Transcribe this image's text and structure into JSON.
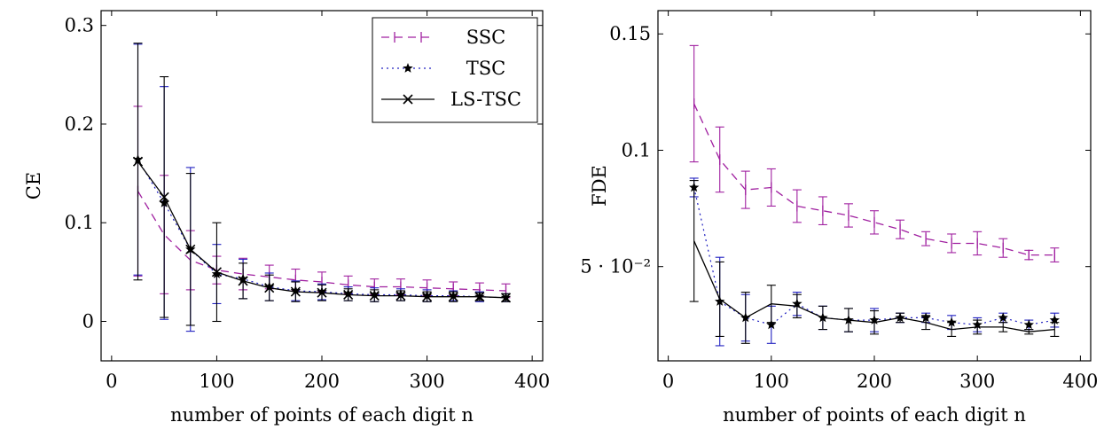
{
  "chart_data": [
    {
      "type": "line",
      "xlabel": "number of points of each digit n",
      "ylabel": "CE",
      "xlim": [
        -10,
        410
      ],
      "ylim": [
        -0.04,
        0.315
      ],
      "xticks": [
        0,
        100,
        200,
        300,
        400
      ],
      "xtick_labels": [
        "0",
        "100",
        "200",
        "300",
        "400"
      ],
      "yticks": [
        0,
        0.1,
        0.2,
        0.3
      ],
      "ytick_labels": [
        "0",
        "0.1",
        "0.2",
        "0.3"
      ],
      "legend_position": "top-right",
      "x": [
        25,
        50,
        75,
        100,
        125,
        150,
        175,
        200,
        225,
        250,
        275,
        300,
        325,
        350,
        375
      ],
      "series": [
        {
          "name": "SSC",
          "color": "#a020a0",
          "style": "dashed",
          "marker": "vbar",
          "values": [
            0.132,
            0.088,
            0.062,
            0.052,
            0.048,
            0.045,
            0.042,
            0.04,
            0.037,
            0.035,
            0.035,
            0.034,
            0.033,
            0.032,
            0.031
          ],
          "err": [
            0.086,
            0.06,
            0.03,
            0.014,
            0.016,
            0.012,
            0.011,
            0.01,
            0.009,
            0.008,
            0.008,
            0.008,
            0.007,
            0.007,
            0.007
          ]
        },
        {
          "name": "TSC",
          "color": "#2020c0",
          "style": "dotted",
          "marker": "star",
          "values": [
            0.164,
            0.12,
            0.073,
            0.048,
            0.043,
            0.035,
            0.031,
            0.03,
            0.028,
            0.027,
            0.027,
            0.026,
            0.026,
            0.025,
            0.024
          ],
          "err": [
            0.117,
            0.118,
            0.083,
            0.03,
            0.02,
            0.014,
            0.01,
            0.008,
            0.007,
            0.007,
            0.006,
            0.006,
            0.005,
            0.005,
            0.004
          ]
        },
        {
          "name": "LS-TSC",
          "color": "#000000",
          "style": "solid",
          "marker": "x",
          "values": [
            0.162,
            0.126,
            0.073,
            0.05,
            0.041,
            0.034,
            0.03,
            0.029,
            0.027,
            0.026,
            0.026,
            0.025,
            0.025,
            0.025,
            0.024
          ],
          "err": [
            0.12,
            0.122,
            0.077,
            0.05,
            0.018,
            0.013,
            0.01,
            0.008,
            0.006,
            0.006,
            0.005,
            0.005,
            0.005,
            0.004,
            0.004
          ]
        }
      ]
    },
    {
      "type": "line",
      "xlabel": "number of points of each digit n",
      "ylabel": "FDE",
      "xlim": [
        -10,
        410
      ],
      "ylim": [
        0.0095,
        0.16
      ],
      "xticks": [
        0,
        100,
        200,
        300,
        400
      ],
      "xtick_labels": [
        "0",
        "100",
        "200",
        "300",
        "400"
      ],
      "yticks": [
        0.05,
        0.1,
        0.15
      ],
      "ytick_labels": [
        "5 · 10⁻²",
        "0.1",
        "0.15"
      ],
      "legend_position": "none",
      "x": [
        25,
        50,
        75,
        100,
        125,
        150,
        175,
        200,
        225,
        250,
        275,
        300,
        325,
        350,
        375
      ],
      "series": [
        {
          "name": "SSC",
          "color": "#a020a0",
          "style": "dashed",
          "marker": "vbar",
          "values": [
            0.12,
            0.096,
            0.083,
            0.084,
            0.076,
            0.074,
            0.072,
            0.069,
            0.066,
            0.062,
            0.06,
            0.06,
            0.058,
            0.055,
            0.055
          ],
          "err": [
            0.025,
            0.014,
            0.008,
            0.008,
            0.007,
            0.006,
            0.005,
            0.005,
            0.004,
            0.003,
            0.004,
            0.005,
            0.004,
            0.002,
            0.003
          ]
        },
        {
          "name": "TSC",
          "color": "#2020c0",
          "style": "dotted",
          "marker": "star",
          "values": [
            0.084,
            0.035,
            0.028,
            0.025,
            0.034,
            0.028,
            0.027,
            0.027,
            0.028,
            0.028,
            0.026,
            0.025,
            0.028,
            0.025,
            0.027
          ],
          "err": [
            0.004,
            0.019,
            0.01,
            0.008,
            0.005,
            0.005,
            0.005,
            0.005,
            0.002,
            0.002,
            0.003,
            0.003,
            0.002,
            0.002,
            0.003
          ]
        },
        {
          "name": "LS-TSC",
          "color": "#000000",
          "style": "solid",
          "marker": "none",
          "values": [
            0.061,
            0.036,
            0.028,
            0.034,
            0.033,
            0.028,
            0.027,
            0.026,
            0.028,
            0.026,
            0.023,
            0.024,
            0.024,
            0.022,
            0.023
          ],
          "err": [
            0.026,
            0.016,
            0.011,
            0.008,
            0.005,
            0.005,
            0.005,
            0.005,
            0.002,
            0.003,
            0.003,
            0.003,
            0.002,
            0.001,
            0.003
          ]
        }
      ]
    }
  ]
}
